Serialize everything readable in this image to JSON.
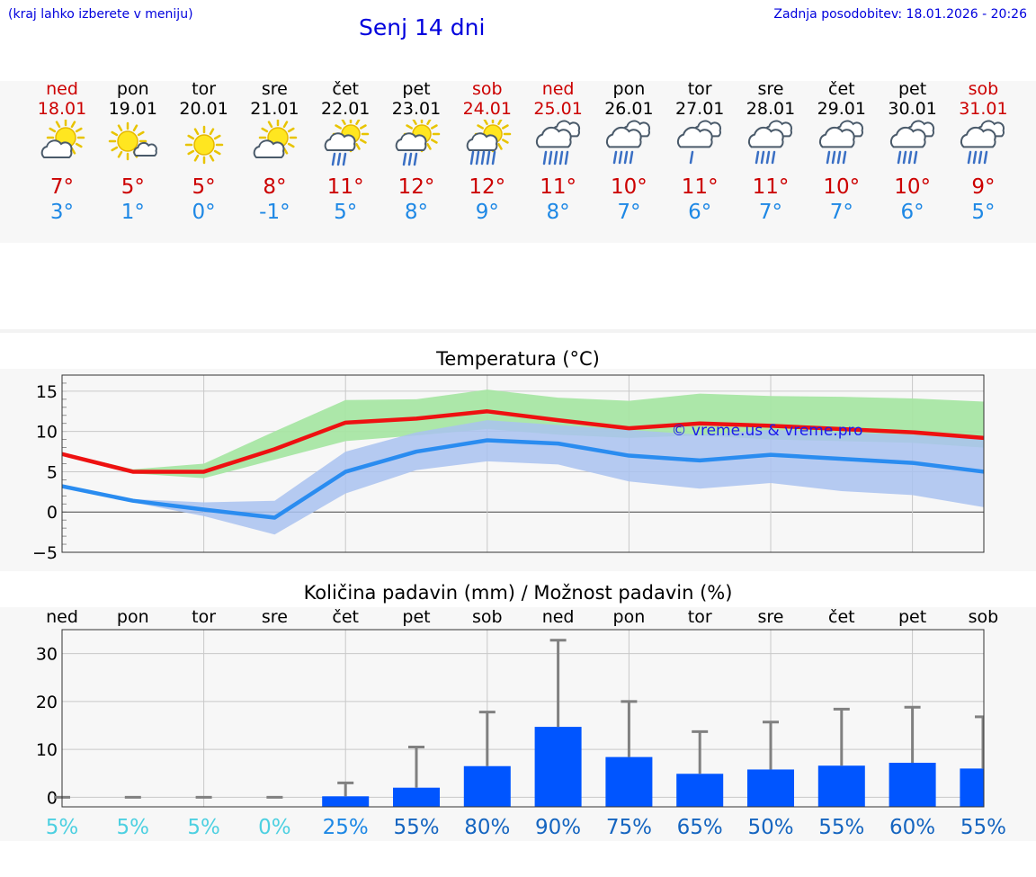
{
  "header": {
    "note": "(kraj lahko izberete v meniju)",
    "title": "Senj 14 dni",
    "updated": "Zadnja posodobitev: 18.01.2026 - 20:26"
  },
  "days": [
    {
      "name": "ned",
      "date": "18.01",
      "weekend": true,
      "icon": "sun-cloud-icon",
      "tmax": "7°",
      "tmin": "3°"
    },
    {
      "name": "pon",
      "date": "19.01",
      "weekend": false,
      "icon": "sun-small-cloud-icon",
      "tmax": "5°",
      "tmin": "1°"
    },
    {
      "name": "tor",
      "date": "20.01",
      "weekend": false,
      "icon": "sun-icon",
      "tmax": "5°",
      "tmin": "0°"
    },
    {
      "name": "sre",
      "date": "21.01",
      "weekend": false,
      "icon": "sun-cloud-icon",
      "tmax": "8°",
      "tmin": "-1°"
    },
    {
      "name": "čet",
      "date": "22.01",
      "weekend": false,
      "icon": "sun-cloud-rain-icon",
      "tmax": "11°",
      "tmin": "5°"
    },
    {
      "name": "pet",
      "date": "23.01",
      "weekend": false,
      "icon": "sun-cloud-rain-icon",
      "tmax": "12°",
      "tmin": "8°"
    },
    {
      "name": "sob",
      "date": "24.01",
      "weekend": true,
      "icon": "sun-cloud-heavy-rain-icon",
      "tmax": "12°",
      "tmin": "9°"
    },
    {
      "name": "ned",
      "date": "25.01",
      "weekend": true,
      "icon": "cloud-heavy-rain-icon",
      "tmax": "11°",
      "tmin": "8°"
    },
    {
      "name": "pon",
      "date": "26.01",
      "weekend": false,
      "icon": "cloud-rain-icon",
      "tmax": "10°",
      "tmin": "7°"
    },
    {
      "name": "tor",
      "date": "27.01",
      "weekend": false,
      "icon": "cloud-light-rain-icon",
      "tmax": "11°",
      "tmin": "6°"
    },
    {
      "name": "sre",
      "date": "28.01",
      "weekend": false,
      "icon": "cloud-rain-icon",
      "tmax": "11°",
      "tmin": "7°"
    },
    {
      "name": "čet",
      "date": "29.01",
      "weekend": false,
      "icon": "cloud-rain-icon",
      "tmax": "10°",
      "tmin": "7°"
    },
    {
      "name": "pet",
      "date": "30.01",
      "weekend": false,
      "icon": "cloud-rain-icon",
      "tmax": "10°",
      "tmin": "6°"
    },
    {
      "name": "sob",
      "date": "31.01",
      "weekend": true,
      "icon": "cloud-rain-icon",
      "tmax": "9°",
      "tmin": "5°"
    }
  ],
  "colors": {
    "title_blue": "#0000dd",
    "weekend_red": "#cc0000",
    "max_line": "#ee1111",
    "min_line": "#2a8cf0",
    "max_band": "#a8e6a4",
    "min_band": "#a9c2f0",
    "bar": "#0055ff",
    "err": "#808080"
  },
  "chart_data": [
    {
      "type": "line",
      "title": "Temperatura (°C)",
      "watermark": "© vreme.us & vreme.pro",
      "ylim": [
        -5,
        17
      ],
      "yticks": [
        -5,
        0,
        5,
        10,
        15
      ],
      "ytick_labels": [
        "−5",
        "0",
        "5",
        "10",
        "15"
      ],
      "series": [
        {
          "name": "max",
          "values": [
            7.2,
            5.0,
            5.0,
            7.8,
            11.1,
            11.6,
            12.5,
            11.4,
            10.4,
            11.0,
            10.7,
            10.3,
            9.9,
            9.2
          ],
          "band_low": [
            7.0,
            4.8,
            4.2,
            6.5,
            8.8,
            9.5,
            10.3,
            9.6,
            9.2,
            9.5,
            9.0,
            8.8,
            8.6,
            8.0
          ],
          "band_high": [
            7.4,
            5.3,
            6.0,
            10.0,
            13.9,
            14.0,
            15.2,
            14.2,
            13.8,
            14.7,
            14.4,
            14.3,
            14.1,
            13.7
          ]
        },
        {
          "name": "min",
          "values": [
            3.2,
            1.4,
            0.3,
            -0.7,
            5.0,
            7.5,
            8.9,
            8.5,
            7.0,
            6.4,
            7.1,
            6.6,
            6.1,
            5.0
          ],
          "band_low": [
            3.0,
            1.2,
            -0.5,
            -2.8,
            2.3,
            5.2,
            6.3,
            5.9,
            3.8,
            2.9,
            3.6,
            2.6,
            2.1,
            0.6
          ],
          "band_high": [
            3.4,
            1.6,
            1.2,
            1.4,
            7.5,
            9.9,
            11.4,
            10.8,
            10.2,
            9.6,
            10.2,
            9.9,
            9.6,
            9.0
          ]
        }
      ]
    },
    {
      "type": "bar",
      "title": "Količina padavin (mm) / Možnost padavin (%)",
      "categories": [
        "ned",
        "pon",
        "tor",
        "sre",
        "čet",
        "pet",
        "sob",
        "ned",
        "pon",
        "tor",
        "sre",
        "čet",
        "pet",
        "sob"
      ],
      "ylim": [
        -2,
        35
      ],
      "yticks": [
        0,
        10,
        20,
        30
      ],
      "ytick_labels": [
        "0",
        "10",
        "20",
        "30"
      ],
      "values": [
        0,
        0,
        0,
        0,
        0.2,
        2.0,
        6.5,
        14.7,
        8.4,
        4.9,
        5.8,
        6.6,
        7.2,
        6.0
      ],
      "error_high": [
        0,
        0,
        0,
        0,
        3.0,
        10.5,
        17.8,
        32.8,
        20.0,
        13.7,
        15.7,
        18.4,
        18.8,
        16.8
      ],
      "probability": [
        "5%",
        "5%",
        "5%",
        "0%",
        "25%",
        "55%",
        "80%",
        "90%",
        "75%",
        "65%",
        "50%",
        "55%",
        "60%",
        "55%"
      ]
    }
  ]
}
